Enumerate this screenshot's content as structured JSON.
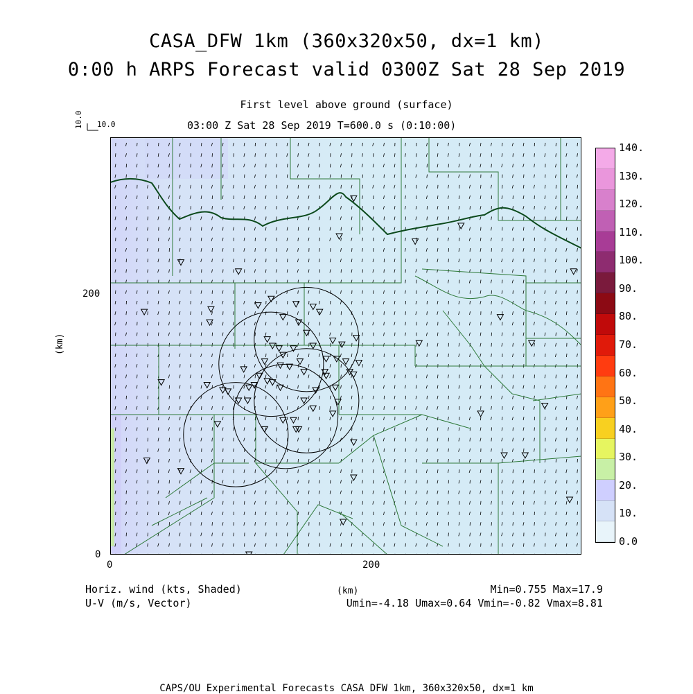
{
  "title": {
    "line1": "CASA_DFW 1km (360x320x50, dx=1 km)",
    "line2": "0:00 h ARPS Forecast valid 0300Z Sat 28 Sep 2019"
  },
  "subtitle": {
    "level": "First level above ground (surface)",
    "time": "03:00 Z Sat 28 Sep 2019    T=600.0 s (0:10:00)"
  },
  "reference_vector": {
    "horizontal_label": "10.0",
    "vertical_label": "10.0"
  },
  "axes": {
    "ylabel": "(km)",
    "xlabel": "(km)",
    "yticks": [
      "0",
      "200"
    ],
    "xticks": [
      "0",
      "200"
    ],
    "xlim": [
      0,
      360
    ],
    "ylim": [
      0,
      320
    ]
  },
  "colorbar": {
    "labels": [
      "0.0",
      "10.",
      "20.",
      "30.",
      "40.",
      "50.",
      "60.",
      "70.",
      "80.",
      "90.",
      "100.",
      "110.",
      "120.",
      "130.",
      "140."
    ],
    "colors": [
      "#e8f4fa",
      "#d6e2f7",
      "#cfcfff",
      "#c8f0a6",
      "#e6f560",
      "#f8d020",
      "#ffa018",
      "#ff7414",
      "#ff3c10",
      "#e01a0a",
      "#c00a0a",
      "#8c0a14",
      "#7a1a3c",
      "#8e2c70",
      "#a83c96",
      "#c060b4",
      "#d880cc",
      "#ea96dc",
      "#f4aae8"
    ]
  },
  "footer": {
    "left1": "Horiz. wind (kts, Shaded)",
    "left2": "U-V (m/s, Vector)",
    "right1": "Min=0.755 Max=17.9",
    "right2": "Umin=-4.18 Umax=0.64 Vmin=-0.82 Vmax=8.81"
  },
  "credit": "CAPS/OU Experimental Forecasts  CASA DFW 1km, 360x320x50, dx=1 km",
  "field": {
    "min": 0.755,
    "max": 17.9,
    "umin": -4.18,
    "umax": 0.64,
    "vmin": -0.82,
    "vmax": 8.81,
    "radar_rings_km": [
      {
        "x": 150,
        "y": 165,
        "r": 40
      },
      {
        "x": 123,
        "y": 146,
        "r": 40
      },
      {
        "x": 134,
        "y": 106,
        "r": 40
      },
      {
        "x": 96,
        "y": 92,
        "r": 40
      },
      {
        "x": 150,
        "y": 118,
        "r": 40
      }
    ],
    "stations_km": [
      [
        186,
        273
      ],
      [
        175,
        244
      ],
      [
        268,
        252
      ],
      [
        233,
        240
      ],
      [
        54,
        224
      ],
      [
        98,
        217
      ],
      [
        26,
        186
      ],
      [
        77,
        188
      ],
      [
        76,
        178
      ],
      [
        113,
        191
      ],
      [
        123,
        196
      ],
      [
        142,
        192
      ],
      [
        155,
        190
      ],
      [
        160,
        186
      ],
      [
        132,
        182
      ],
      [
        144,
        178
      ],
      [
        150,
        170
      ],
      [
        155,
        160
      ],
      [
        170,
        164
      ],
      [
        165,
        150
      ],
      [
        177,
        161
      ],
      [
        188,
        166
      ],
      [
        173,
        150
      ],
      [
        140,
        158
      ],
      [
        120,
        165
      ],
      [
        124,
        160
      ],
      [
        129,
        158
      ],
      [
        132,
        153
      ],
      [
        118,
        148
      ],
      [
        114,
        137
      ],
      [
        130,
        145
      ],
      [
        137,
        144
      ],
      [
        145,
        148
      ],
      [
        148,
        140
      ],
      [
        165,
        137
      ],
      [
        172,
        128
      ],
      [
        164,
        140
      ],
      [
        157,
        126
      ],
      [
        183,
        140
      ],
      [
        190,
        147
      ],
      [
        180,
        148
      ],
      [
        186,
        138
      ],
      [
        174,
        117
      ],
      [
        155,
        112
      ],
      [
        148,
        118
      ],
      [
        144,
        96
      ],
      [
        140,
        103
      ],
      [
        130,
        128
      ],
      [
        120,
        133
      ],
      [
        102,
        142
      ],
      [
        90,
        125
      ],
      [
        98,
        118
      ],
      [
        105,
        118
      ],
      [
        110,
        130
      ],
      [
        124,
        132
      ],
      [
        86,
        126
      ],
      [
        74,
        130
      ],
      [
        39,
        132
      ],
      [
        118,
        96
      ],
      [
        132,
        103
      ],
      [
        142,
        96
      ],
      [
        82,
        100
      ],
      [
        106,
        128
      ],
      [
        170,
        108
      ],
      [
        186,
        86
      ],
      [
        28,
        72
      ],
      [
        54,
        64
      ],
      [
        186,
        59
      ],
      [
        236,
        162
      ],
      [
        298,
        182
      ],
      [
        322,
        162
      ],
      [
        332,
        114
      ],
      [
        283,
        108
      ],
      [
        301,
        76
      ],
      [
        317,
        76
      ],
      [
        351,
        42
      ],
      [
        354,
        217
      ],
      [
        178,
        25
      ],
      [
        106,
        0
      ]
    ]
  }
}
